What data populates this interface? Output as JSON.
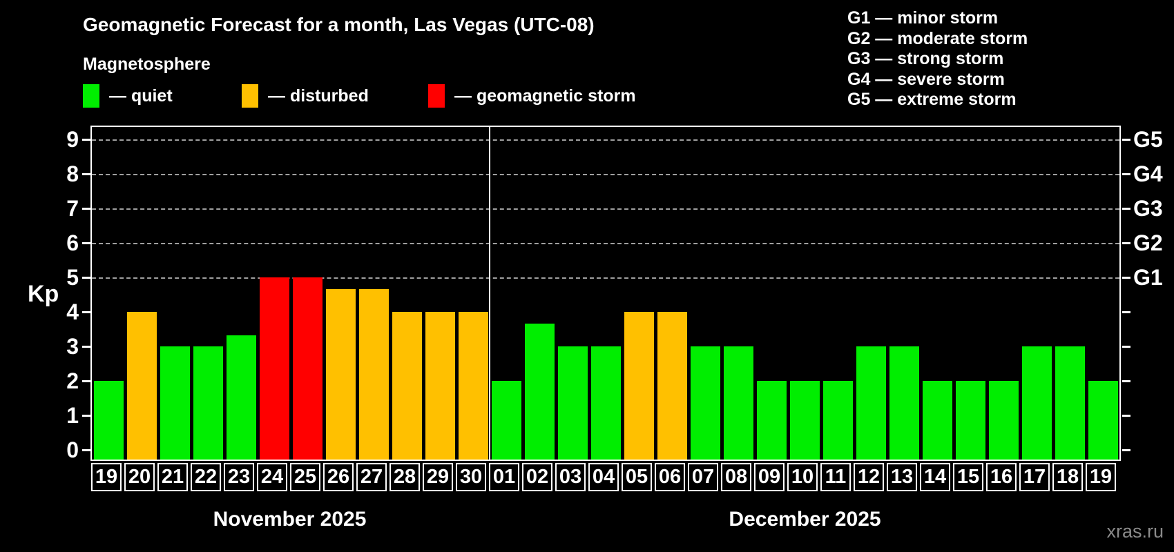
{
  "title": "Geomagnetic Forecast for a month, Las Vegas (UTC-08)",
  "subtitle": "Magnetosphere",
  "legend": [
    {
      "key": "quiet",
      "label": "— quiet"
    },
    {
      "key": "disturbed",
      "label": "— disturbed"
    },
    {
      "key": "storm",
      "label": "— geomagnetic storm"
    }
  ],
  "g_legend": [
    "G1 — minor storm",
    "G2 — moderate storm",
    "G3 — strong storm",
    "G4 — severe storm",
    "G5 — extreme storm"
  ],
  "watermark": "xras.ru",
  "colors": {
    "background": "#000000",
    "quiet": "#00ee00",
    "disturbed": "#ffc000",
    "storm": "#ff0000",
    "axis": "#ffffff",
    "gridline": "#a0a0a0",
    "watermark": "#8a8a8a"
  },
  "chart_data": {
    "type": "bar",
    "title": "Geomagnetic Forecast for a month, Las Vegas (UTC-08)",
    "ylabel": "Kp",
    "ylim": [
      0,
      9
    ],
    "y_ticks": [
      0,
      1,
      2,
      3,
      4,
      5,
      6,
      7,
      8,
      9
    ],
    "gridlines_at": [
      5,
      6,
      7,
      8,
      9
    ],
    "grid": "dashed horizontal at Kp 5-9 only",
    "right_axis": [
      {
        "label": "G1",
        "value": 5
      },
      {
        "label": "G2",
        "value": 6
      },
      {
        "label": "G3",
        "value": 7
      },
      {
        "label": "G4",
        "value": 8
      },
      {
        "label": "G5",
        "value": 9
      }
    ],
    "months": [
      {
        "label": "November 2025",
        "days": [
          {
            "date": "19",
            "kp": 2,
            "level": "quiet"
          },
          {
            "date": "20",
            "kp": 4,
            "level": "disturbed"
          },
          {
            "date": "21",
            "kp": 3,
            "level": "quiet"
          },
          {
            "date": "22",
            "kp": 3,
            "level": "quiet"
          },
          {
            "date": "23",
            "kp": 3.33,
            "level": "quiet"
          },
          {
            "date": "24",
            "kp": 5,
            "level": "storm"
          },
          {
            "date": "25",
            "kp": 5,
            "level": "storm"
          },
          {
            "date": "26",
            "kp": 4.67,
            "level": "disturbed"
          },
          {
            "date": "27",
            "kp": 4.67,
            "level": "disturbed"
          },
          {
            "date": "28",
            "kp": 4,
            "level": "disturbed"
          },
          {
            "date": "29",
            "kp": 4,
            "level": "disturbed"
          },
          {
            "date": "30",
            "kp": 4,
            "level": "disturbed"
          }
        ]
      },
      {
        "label": "December 2025",
        "days": [
          {
            "date": "01",
            "kp": 2,
            "level": "quiet"
          },
          {
            "date": "02",
            "kp": 3.67,
            "level": "quiet"
          },
          {
            "date": "03",
            "kp": 3,
            "level": "quiet"
          },
          {
            "date": "04",
            "kp": 3,
            "level": "quiet"
          },
          {
            "date": "05",
            "kp": 4,
            "level": "disturbed"
          },
          {
            "date": "06",
            "kp": 4,
            "level": "disturbed"
          },
          {
            "date": "07",
            "kp": 3,
            "level": "quiet"
          },
          {
            "date": "08",
            "kp": 3,
            "level": "quiet"
          },
          {
            "date": "09",
            "kp": 2,
            "level": "quiet"
          },
          {
            "date": "10",
            "kp": 2,
            "level": "quiet"
          },
          {
            "date": "11",
            "kp": 2,
            "level": "quiet"
          },
          {
            "date": "12",
            "kp": 3,
            "level": "quiet"
          },
          {
            "date": "13",
            "kp": 3,
            "level": "quiet"
          },
          {
            "date": "14",
            "kp": 2,
            "level": "quiet"
          },
          {
            "date": "15",
            "kp": 2,
            "level": "quiet"
          },
          {
            "date": "16",
            "kp": 2,
            "level": "quiet"
          },
          {
            "date": "17",
            "kp": 3,
            "level": "quiet"
          },
          {
            "date": "18",
            "kp": 3,
            "level": "quiet"
          },
          {
            "date": "19",
            "kp": 2,
            "level": "quiet"
          }
        ]
      }
    ]
  }
}
